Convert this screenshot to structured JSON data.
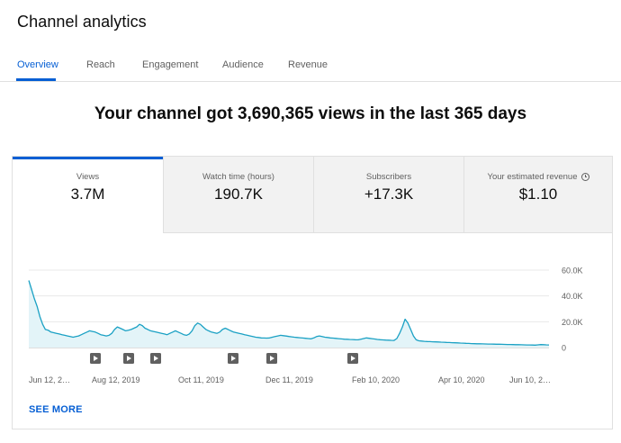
{
  "header": {
    "title": "Channel analytics"
  },
  "tabs": [
    {
      "label": "Overview",
      "active": true
    },
    {
      "label": "Reach",
      "active": false
    },
    {
      "label": "Engagement",
      "active": false
    },
    {
      "label": "Audience",
      "active": false
    },
    {
      "label": "Revenue",
      "active": false
    }
  ],
  "headline": "Your channel got 3,690,365 views in the last 365 days",
  "metrics": [
    {
      "label": "Views",
      "value": "3.7M",
      "active": true
    },
    {
      "label": "Watch time (hours)",
      "value": "190.7K",
      "active": false
    },
    {
      "label": "Subscribers",
      "value": "+17.3K",
      "active": false
    },
    {
      "label": "Your estimated revenue",
      "value": "$1.10",
      "active": false,
      "icon": "clock-icon"
    }
  ],
  "see_more_label": "SEE MORE",
  "colors": {
    "accent": "#065fd4",
    "line": "#1ba1c4",
    "fill": "#e3f4f8",
    "tab_inactive": "#606060"
  },
  "chart_data": {
    "type": "area",
    "y_ticks": [
      "60.0K",
      "40.0K",
      "20.0K",
      "0"
    ],
    "ylim": [
      0,
      60000
    ],
    "x_tick_labels": [
      "Jun 12, 2…",
      "Aug 12, 2019",
      "Oct 11, 2019",
      "Dec 11, 2019",
      "Feb 10, 2020",
      "Apr 10, 2020",
      "Jun 10, 2…"
    ],
    "video_markers": 7,
    "marker_icon": "play-icon",
    "series": [
      {
        "values": [
          52000,
          45000,
          38000,
          32000,
          24000,
          18000,
          14000,
          13500,
          12000,
          11500,
          11000,
          10500,
          10000,
          9500,
          9000,
          8500,
          8000,
          8500,
          9000,
          10000,
          11000,
          12000,
          13000,
          12500,
          12000,
          11000,
          10000,
          9500,
          9000,
          9500,
          11000,
          14000,
          16000,
          15000,
          14000,
          13000,
          13500,
          14000,
          15000,
          16000,
          18000,
          17000,
          15000,
          14000,
          13000,
          12500,
          12000,
          11500,
          11000,
          10500,
          10000,
          11000,
          12000,
          13000,
          12000,
          11000,
          10000,
          9500,
          10500,
          13000,
          17000,
          19000,
          18000,
          16000,
          14000,
          13000,
          12000,
          11500,
          11000,
          12000,
          14000,
          15000,
          14000,
          13000,
          12000,
          11500,
          11000,
          10500,
          10000,
          9500,
          9000,
          8500,
          8000,
          7800,
          7500,
          7400,
          7300,
          7500,
          8000,
          8500,
          9000,
          9500,
          9200,
          8900,
          8600,
          8300,
          8000,
          7800,
          7600,
          7400,
          7200,
          7000,
          6800,
          7500,
          8500,
          9000,
          8500,
          8000,
          7800,
          7500,
          7300,
          7100,
          6900,
          6700,
          6500,
          6400,
          6300,
          6200,
          6100,
          6000,
          6500,
          7000,
          7500,
          7200,
          6900,
          6600,
          6300,
          6100,
          5900,
          5800,
          5700,
          5600,
          5500,
          7000,
          11000,
          16000,
          22000,
          19000,
          14000,
          9000,
          6000,
          5200,
          5000,
          4800,
          4700,
          4600,
          4500,
          4400,
          4300,
          4200,
          4100,
          4000,
          3900,
          3800,
          3700,
          3600,
          3500,
          3400,
          3300,
          3200,
          3100,
          3000,
          2950,
          2900,
          2850,
          2800,
          2750,
          2700,
          2650,
          2600,
          2550,
          2500,
          2450,
          2400,
          2350,
          2300,
          2250,
          2200,
          2150,
          2100,
          2050,
          2000,
          1950,
          1900,
          2100,
          2300,
          2200,
          2100,
          2000
        ]
      }
    ]
  }
}
